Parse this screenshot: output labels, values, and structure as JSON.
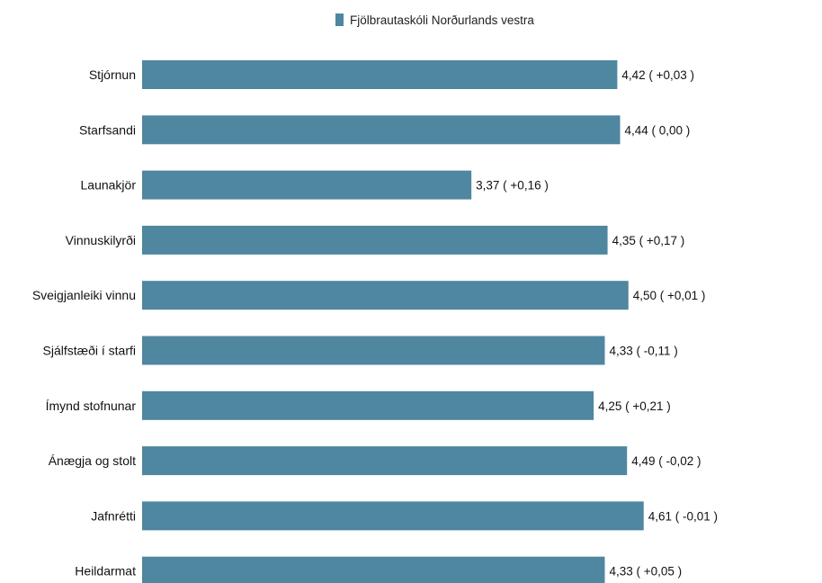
{
  "chart_data": {
    "type": "bar",
    "orientation": "horizontal",
    "categories": [
      "Stjórnun",
      "Starfsandi",
      "Launakjör",
      "Vinnuskilyrði",
      "Sveigjanleiki vinnu",
      "Sjálfstæði í starfi",
      "Ímynd stofnunar",
      "Ánægja og stolt",
      "Jafnrétti",
      "Heildarmat"
    ],
    "series": [
      {
        "name": "Fjölbrautaskóli Norðurlands vestra",
        "color": "#4f86a0",
        "values": [
          4.42,
          4.44,
          3.37,
          4.35,
          4.5,
          4.33,
          4.25,
          4.49,
          4.61,
          4.33
        ],
        "data_labels": [
          "4,42 ( +0,03 )",
          "4,44 ( 0,00 )",
          "3,37 ( +0,16 )",
          "4,35 ( +0,17 )",
          "4,50 ( +0,01 )",
          "4,33 ( -0,11 )",
          "4,25 ( +0,21 )",
          "4,49 ( -0,02 )",
          "4,61 ( -0,01 )",
          "4,33 ( +0,05 )"
        ]
      }
    ],
    "xlim": [
      1,
      5
    ],
    "grid": false,
    "legend_position": "top"
  }
}
